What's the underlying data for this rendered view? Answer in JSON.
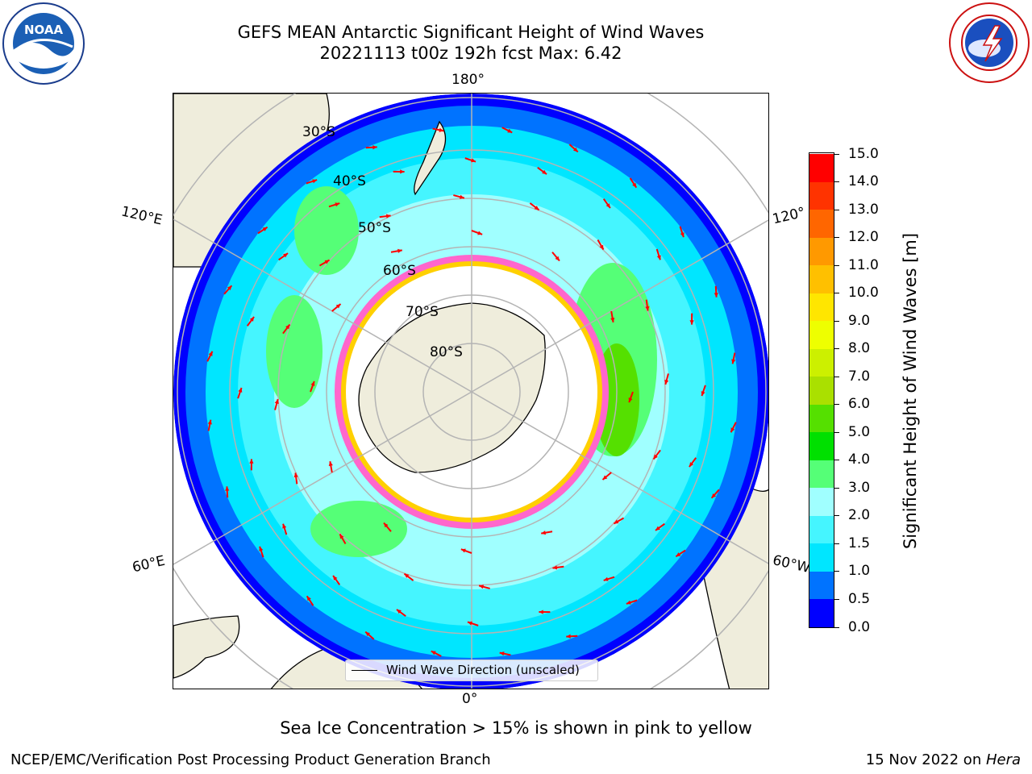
{
  "header": {
    "title_line1": "GEFS MEAN Antarctic Significant Height of Wind Waves",
    "title_line2": "20221113 t00z 192h fcst   Max: 6.42"
  },
  "logos": {
    "left": {
      "icon": "noaa-logo",
      "text": "NOAA"
    },
    "right": {
      "icon": "national-weather-service-logo"
    }
  },
  "map": {
    "projection": "south-polar-stereographic",
    "longitude_labels": [
      "180°",
      "120°E",
      "120°",
      "60°E",
      "60°W",
      "0°"
    ],
    "latitude_labels": [
      "30°S",
      "40°S",
      "50°S",
      "60°S",
      "70°S",
      "80°S"
    ],
    "legend_label": "Wind Wave Direction (unscaled)",
    "colors": {
      "land": "#efeddc",
      "sea_ice_pink": "#ff66cc",
      "sea_ice_yellow": "#ffd000",
      "arrows": "#ff0000",
      "gridlines": "#b4b4b4"
    }
  },
  "colorbar": {
    "title": "Significant Height of Wind Waves [m]",
    "tick_labels": [
      "0.0",
      "0.5",
      "1.0",
      "1.5",
      "2.0",
      "3.0",
      "4.0",
      "5.0",
      "6.0",
      "7.0",
      "8.0",
      "9.0",
      "10.0",
      "11.0",
      "12.0",
      "13.0",
      "14.0",
      "15.0"
    ],
    "colors": [
      "#0000ff",
      "#0073ff",
      "#00e6ff",
      "#45f5ff",
      "#a0ffff",
      "#55ff77",
      "#00e000",
      "#55e000",
      "#aae000",
      "#ccf000",
      "#eeff00",
      "#ffe600",
      "#ffc000",
      "#ff9900",
      "#ff6600",
      "#ff3300",
      "#ff0000"
    ]
  },
  "notes": {
    "sea_ice": "Sea Ice Concentration > 15% is shown in pink to yellow",
    "producer": "NCEP/EMC/Verification Post Processing Product Generation Branch",
    "date_prefix": "15 Nov 2022 on ",
    "machine": "Hera"
  }
}
